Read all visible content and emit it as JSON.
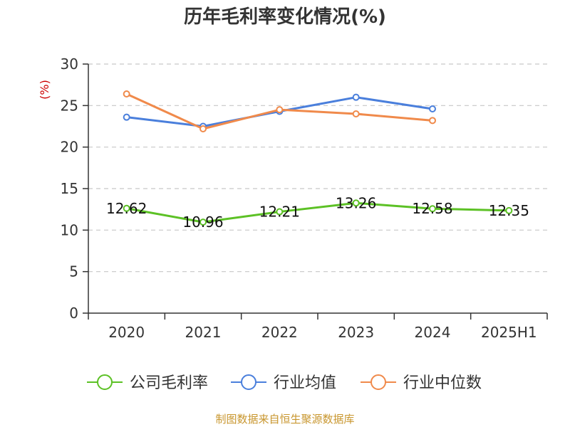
{
  "chart_data": {
    "type": "line",
    "title": "历年毛利率变化情况(%)",
    "ylabel": "(%)",
    "xlabel": "",
    "categories": [
      "2020",
      "2021",
      "2022",
      "2023",
      "2024",
      "2025H1"
    ],
    "ylim": [
      0,
      30
    ],
    "yticks": [
      0,
      5,
      10,
      15,
      20,
      25,
      30
    ],
    "grid": true,
    "legend_position": "bottom",
    "series": [
      {
        "name": "公司毛利率",
        "color": "#5cc125",
        "values": [
          12.62,
          10.96,
          12.21,
          13.26,
          12.58,
          12.35
        ],
        "labels": [
          "12.62",
          "10.96",
          "12.21",
          "13.26",
          "12.58",
          "12.35"
        ]
      },
      {
        "name": "行业均值",
        "color": "#4a7fdc",
        "values": [
          23.6,
          22.5,
          24.3,
          26.0,
          24.6,
          null
        ]
      },
      {
        "name": "行业中位数",
        "color": "#f08a4b",
        "values": [
          26.4,
          22.2,
          24.5,
          24.0,
          23.2,
          null
        ]
      }
    ]
  },
  "source": "制图数据来自恒生聚源数据库"
}
